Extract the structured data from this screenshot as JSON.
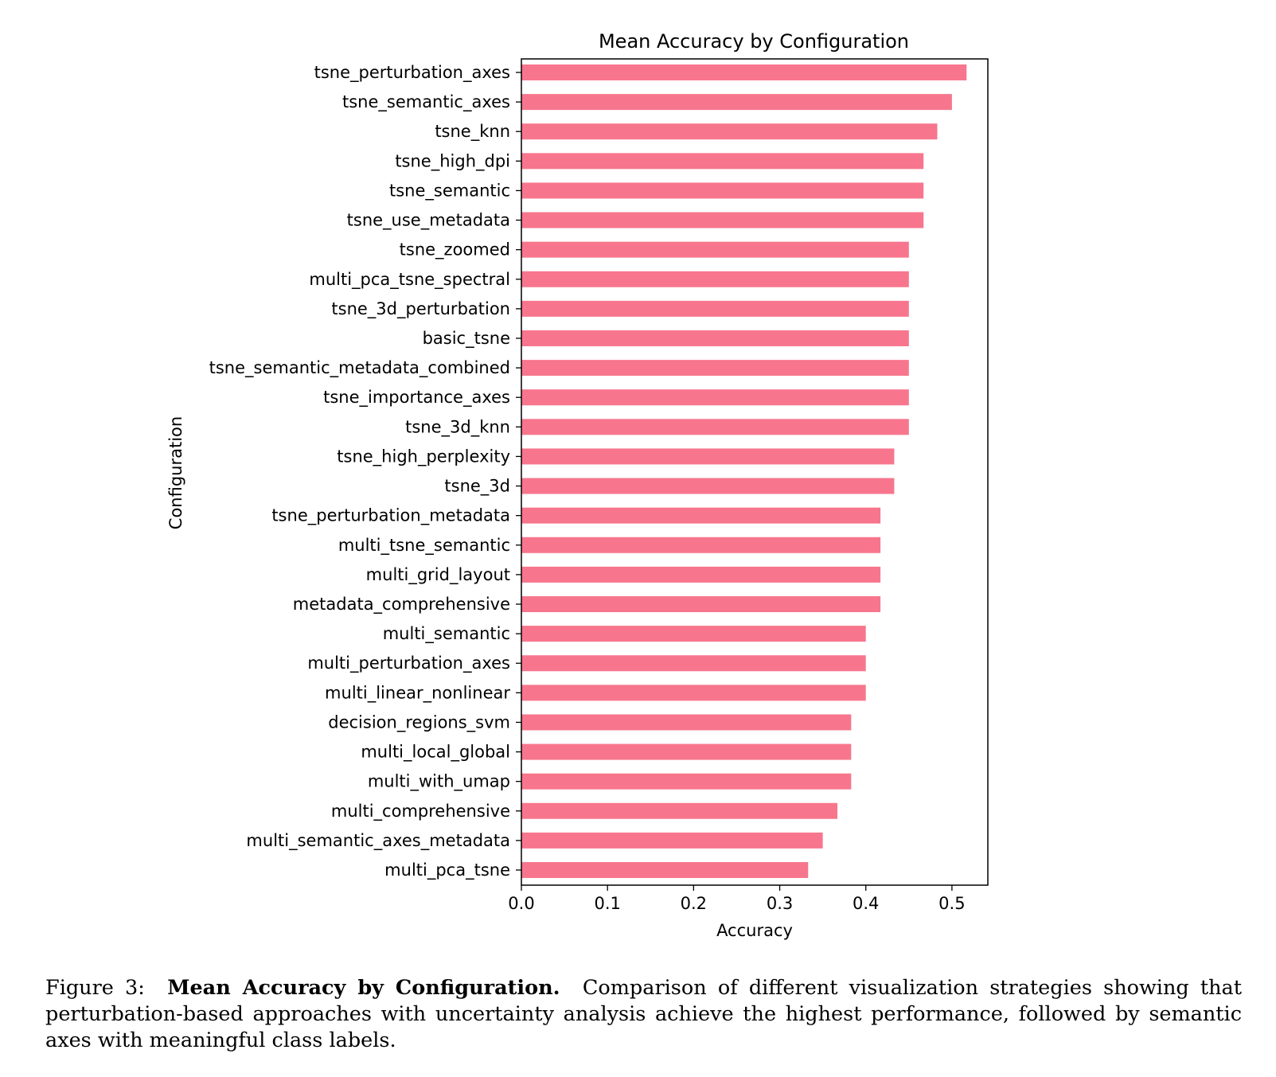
{
  "chart_data": {
    "type": "bar",
    "orientation": "horizontal",
    "title": "Mean Accuracy by Configuration",
    "xlabel": "Accuracy",
    "ylabel": "Configuration",
    "xlim": [
      0,
      0.5417
    ],
    "xticks": [
      0.0,
      0.1,
      0.2,
      0.3,
      0.4,
      0.5
    ],
    "xtick_labels": [
      "0.0",
      "0.1",
      "0.2",
      "0.3",
      "0.4",
      "0.5"
    ],
    "grid": false,
    "bar_color": "#f7768d",
    "categories": [
      "tsne_perturbation_axes",
      "tsne_semantic_axes",
      "tsne_knn",
      "tsne_high_dpi",
      "tsne_semantic",
      "tsne_use_metadata",
      "tsne_zoomed",
      "multi_pca_tsne_spectral",
      "tsne_3d_perturbation",
      "basic_tsne",
      "tsne_semantic_metadata_combined",
      "tsne_importance_axes",
      "tsne_3d_knn",
      "tsne_high_perplexity",
      "tsne_3d",
      "tsne_perturbation_metadata",
      "multi_tsne_semantic",
      "multi_grid_layout",
      "metadata_comprehensive",
      "multi_semantic",
      "multi_perturbation_axes",
      "multi_linear_nonlinear",
      "decision_regions_svm",
      "multi_local_global",
      "multi_with_umap",
      "multi_comprehensive",
      "multi_semantic_axes_metadata",
      "multi_pca_tsne"
    ],
    "values": [
      0.517,
      0.5,
      0.483,
      0.467,
      0.467,
      0.467,
      0.45,
      0.45,
      0.45,
      0.45,
      0.45,
      0.45,
      0.45,
      0.433,
      0.433,
      0.417,
      0.417,
      0.417,
      0.417,
      0.4,
      0.4,
      0.4,
      0.383,
      0.383,
      0.383,
      0.367,
      0.35,
      0.333
    ]
  },
  "caption": {
    "prefix": "Figure 3:",
    "title": "Mean Accuracy by Configuration.",
    "text": "Comparison of different visualization strategies showing that perturbation-based approaches with uncertainty analysis achieve the highest performance, followed by semantic axes with meaningful class labels."
  }
}
